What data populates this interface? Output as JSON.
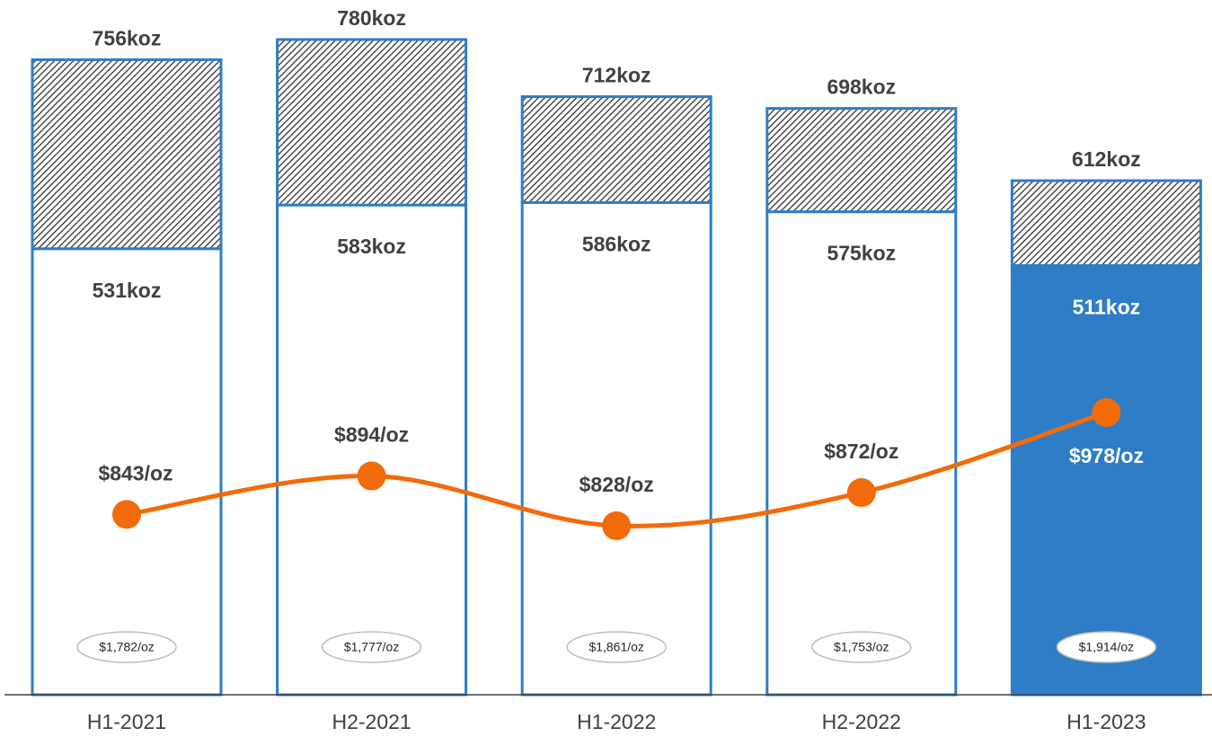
{
  "chart_data": {
    "type": "bar",
    "categories": [
      "H1-2021",
      "H2-2021",
      "H1-2022",
      "H2-2022",
      "H1-2023"
    ],
    "series": [
      {
        "values": [
          531,
          583,
          586,
          575,
          511
        ],
        "value_labels": [
          "531koz",
          "583koz",
          "586koz",
          "575koz",
          "511koz"
        ],
        "colors": [
          "#ffffff",
          "#ffffff",
          "#ffffff",
          "#ffffff",
          "#2e7dc6"
        ],
        "label_colors": [
          "#404040",
          "#404040",
          "#404040",
          "#404040",
          "#ffffff"
        ]
      },
      {
        "values": [
          225,
          197,
          126,
          123,
          101
        ],
        "pattern": "hatched"
      }
    ],
    "totals": [
      756,
      780,
      712,
      698,
      612
    ],
    "total_labels": [
      "756koz",
      "780koz",
      "712koz",
      "698koz",
      "612koz"
    ],
    "outline_color": "#2e7dc6",
    "line": {
      "color": "#f26b0a",
      "values": [
        843,
        894,
        828,
        872,
        978
      ],
      "value_labels": [
        "$843/oz",
        "$894/oz",
        "$828/oz",
        "$872/oz",
        "$978/oz"
      ],
      "label_colors": [
        "#404040",
        "#404040",
        "#404040",
        "#404040",
        "#ffffff"
      ]
    },
    "prices": {
      "values": [
        1782,
        1777,
        1861,
        1753,
        1914
      ],
      "value_labels": [
        "$1,782/oz",
        "$1,777/oz",
        "$1,861/oz",
        "$1,753/oz",
        "$1,914/oz"
      ]
    }
  }
}
